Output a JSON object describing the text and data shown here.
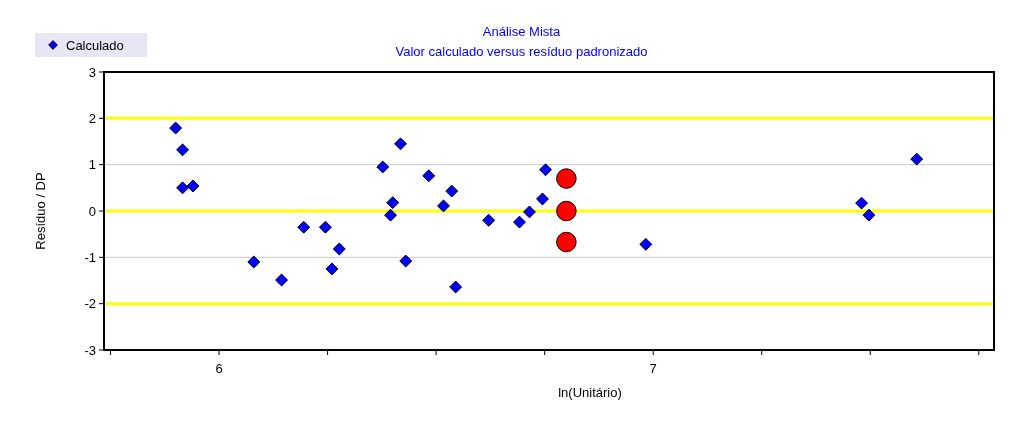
{
  "chart_data": {
    "type": "scatter",
    "title": "Análise Mista",
    "subtitle": "Valor calculado versus resíduo padronizado",
    "xlabel": "ln(Unitário)",
    "ylabel": "Resíduo / DP",
    "xlim": [
      5.735,
      7.785
    ],
    "ylim": [
      -3,
      3
    ],
    "xticks": [
      {
        "value": 5.75,
        "label": null
      },
      6,
      {
        "value": 6.25,
        "label": null
      },
      {
        "value": 6.5,
        "label": null
      },
      {
        "value": 6.75,
        "label": null
      },
      7,
      {
        "value": 7.25,
        "label": null
      },
      {
        "value": 7.5,
        "label": null
      },
      {
        "value": 7.75,
        "label": null
      }
    ],
    "yticks": [
      -3,
      -2,
      -1,
      0,
      1,
      2,
      3
    ],
    "legend": "top left",
    "marker": "diamond",
    "ref_lines": [
      {
        "axis": "y",
        "value": 2,
        "color": "#ffff00"
      },
      {
        "axis": "y",
        "value": 1,
        "color": "#c8c8c8"
      },
      {
        "axis": "y",
        "value": 0,
        "color": "#ffff00"
      },
      {
        "axis": "y",
        "value": -1,
        "color": "#c8c8c8"
      },
      {
        "axis": "y",
        "value": -2,
        "color": "#ffff00"
      }
    ],
    "series": [
      {
        "name": "Calculado",
        "color": "#0000ff",
        "x": [
          5.9,
          5.916,
          5.916,
          5.94,
          6.08,
          6.144,
          6.195,
          6.245,
          6.277,
          6.26,
          6.377,
          6.4,
          6.395,
          6.418,
          6.43,
          6.483,
          6.517,
          6.536,
          6.545,
          6.621,
          6.692,
          6.715,
          6.745,
          6.752,
          6.983,
          7.48,
          7.497,
          7.607
        ],
        "values": [
          1.79,
          1.32,
          0.5,
          0.54,
          -1.1,
          -1.49,
          -0.35,
          -0.35,
          -0.82,
          -1.25,
          0.95,
          0.18,
          -0.09,
          1.45,
          -1.08,
          0.76,
          0.11,
          0.43,
          -1.64,
          -0.2,
          -0.24,
          -0.02,
          0.26,
          0.89,
          -0.72,
          0.17,
          -0.09,
          1.12
        ]
      },
      {
        "color": "#ff0000",
        "marker": "circle",
        "x": [
          6.8,
          6.8,
          6.8
        ],
        "values": [
          0.7,
          0,
          -0.67
        ]
      }
    ]
  }
}
